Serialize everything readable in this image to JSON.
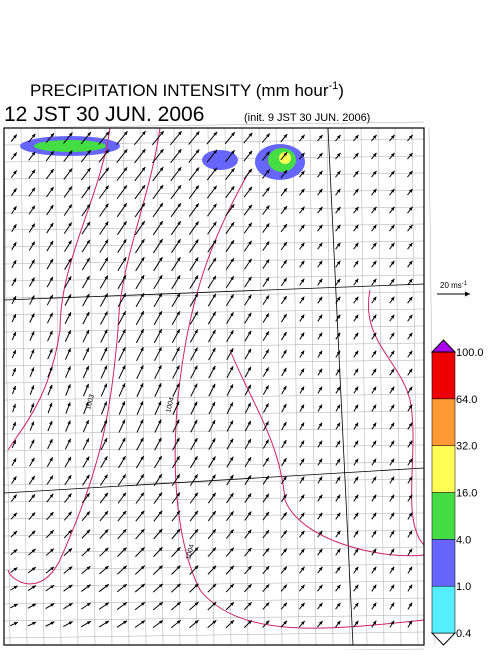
{
  "header": {
    "title": "PRECIPITATION INTENSITY (mm hour",
    "title_superscript": "-1",
    "title_end": ")",
    "valid_time": "12 JST 30 JUN. 2006",
    "init_time": "(init. 9 JST 30 JUN. 2006)"
  },
  "wind_scale": {
    "label": "20 ms",
    "label_superscript": "-1"
  },
  "contours": [
    {
      "label": "1003"
    },
    {
      "label": "1004"
    },
    {
      "label": "1004"
    }
  ],
  "colorbar": {
    "levels": [
      {
        "value": 0.4,
        "label": "0.4"
      },
      {
        "value": 1,
        "label": "1.0"
      },
      {
        "value": 4,
        "label": "4.0"
      },
      {
        "value": 16,
        "label": "16.0"
      },
      {
        "value": 32,
        "label": "32.0"
      },
      {
        "value": 64,
        "label": "64.0"
      },
      {
        "value": 100,
        "label": "100.0"
      }
    ],
    "colors": [
      "#ffffff",
      "#55eeff",
      "#6666ff",
      "#44dd44",
      "#ffff55",
      "#ff9933",
      "#ee0000",
      "#aa00ee"
    ]
  }
}
